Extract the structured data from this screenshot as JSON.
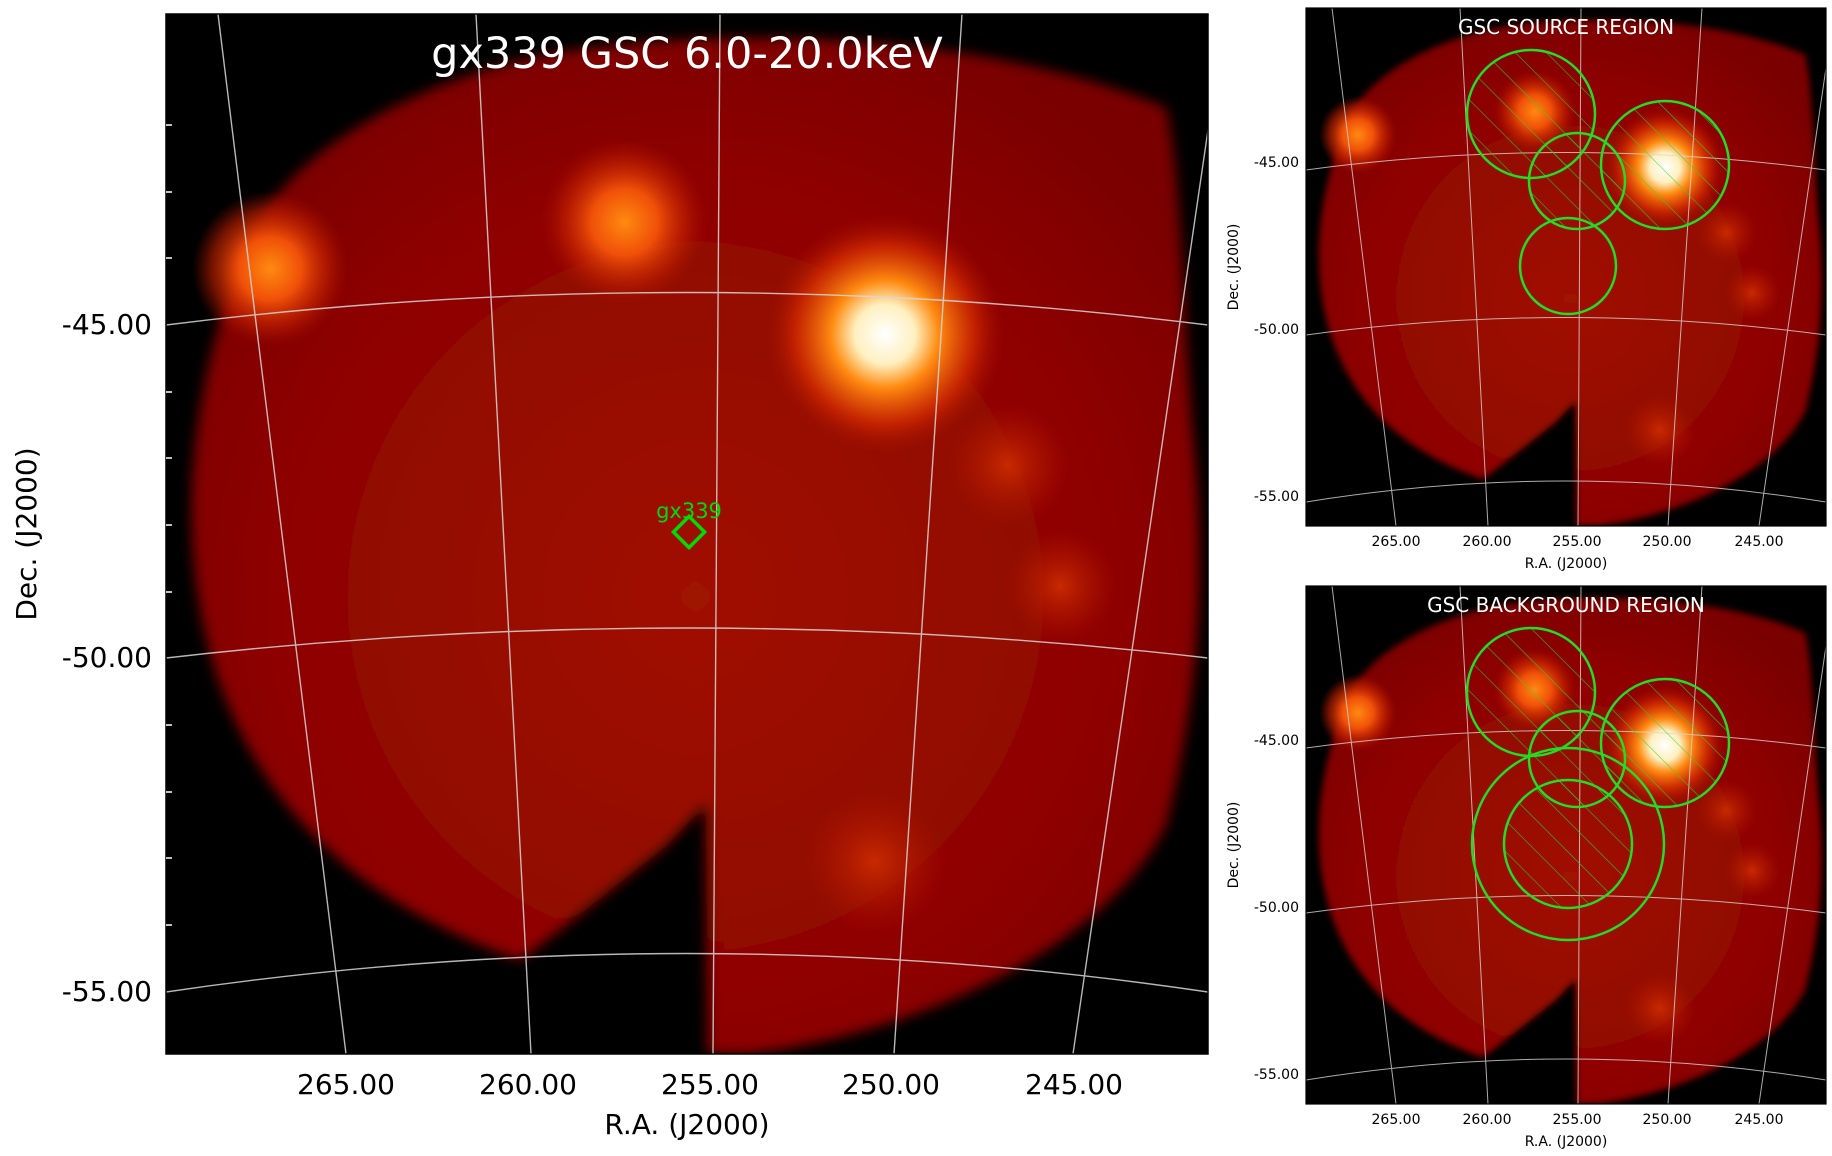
{
  "main_panel": {
    "title": "gx339 GSC 6.0-20.0keV",
    "xlabel": "R.A. (J2000)",
    "ylabel": "Dec. (J2000)",
    "ra_ticks": [
      "265.00",
      "260.00",
      "255.00",
      "250.00",
      "245.00"
    ],
    "dec_ticks": [
      "-45.00",
      "-50.00",
      "-55.00"
    ],
    "marker_label": "gx339",
    "marker_color": "#00dd00"
  },
  "source_panel": {
    "title": "GSC SOURCE REGION",
    "xlabel": "R.A. (J2000)",
    "ylabel": "Dec. (J2000)",
    "ra_ticks": [
      "265.00",
      "260.00",
      "255.00",
      "250.00",
      "245.00"
    ],
    "dec_ticks": [
      "-45.00",
      "-50.00",
      "-55.00"
    ],
    "region_color": "#22dd22"
  },
  "background_panel": {
    "title": "GSC BACKGROUND REGION",
    "xlabel": "R.A. (J2000)",
    "ylabel": "Dec. (J2000)",
    "ra_ticks": [
      "265.00",
      "260.00",
      "255.00",
      "250.00",
      "245.00"
    ],
    "dec_ticks": [
      "-45.00",
      "-50.00",
      "-55.00"
    ],
    "region_color": "#22dd22"
  },
  "colors": {
    "field_base": "#8c0000",
    "field_mid": "#b01800",
    "source_hot": "#ff6a00",
    "source_core": "#ffffff",
    "grid": "#d8d8d8",
    "sky_background": "#000000"
  }
}
